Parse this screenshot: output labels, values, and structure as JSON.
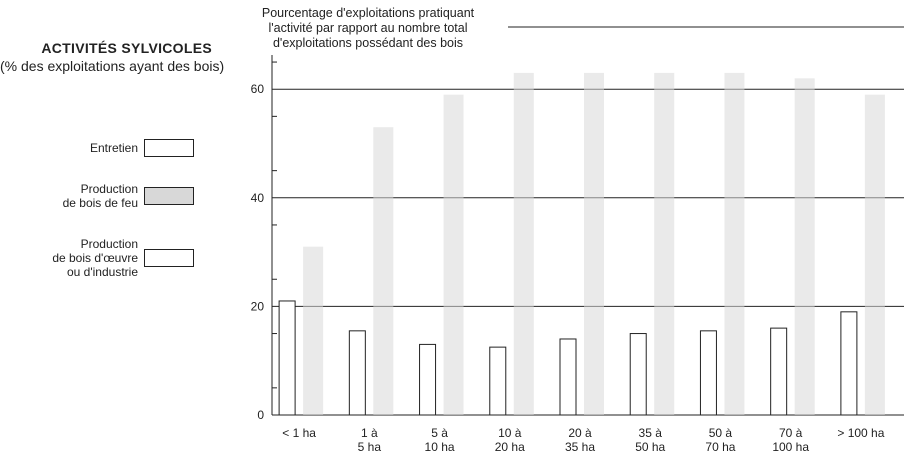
{
  "title": "ACTIVITÉS SYLVICOLES",
  "subtitle": "(% des exploitations ayant des bois)",
  "legend": [
    {
      "label_lines": [
        "Entretien"
      ],
      "color": "#ffffff"
    },
    {
      "label_lines": [
        "Production",
        "de bois de feu"
      ],
      "color": "#d8d8d8"
    },
    {
      "label_lines": [
        "Production",
        "de bois d'œuvre",
        "ou d'industrie"
      ],
      "color": "#ffffff"
    }
  ],
  "colors": {
    "background": "#ffffff",
    "ink": "#222222",
    "shaded": "#d8d8d8"
  },
  "chart_data": {
    "type": "bar",
    "ylabel_lines": [
      "Pourcentage d'exploitations pratiquant",
      "l'activité par rapport au nombre total",
      "d'exploitations possédant des bois"
    ],
    "ylim": [
      0,
      60
    ],
    "yticks": [
      0,
      20,
      40,
      60
    ],
    "grid": true,
    "categories": [
      [
        "< 1 ha"
      ],
      [
        "1 à",
        "5 ha"
      ],
      [
        "5 à",
        "10 ha"
      ],
      [
        "10 à",
        "20 ha"
      ],
      [
        "20 à",
        "35 ha"
      ],
      [
        "35 à",
        "50 ha"
      ],
      [
        "50 à",
        "70 ha"
      ],
      [
        "70 à",
        "100 ha"
      ],
      [
        "> 100 ha"
      ]
    ],
    "series": [
      {
        "name": "Production de bois de feu",
        "values": [
          31,
          53,
          59,
          63,
          63,
          63,
          63,
          62,
          59
        ]
      },
      {
        "name": "Production de bois d'œuvre ou d'industrie",
        "values": [
          21,
          15.5,
          13,
          12.5,
          14,
          15,
          15.5,
          16,
          19
        ]
      }
    ]
  }
}
